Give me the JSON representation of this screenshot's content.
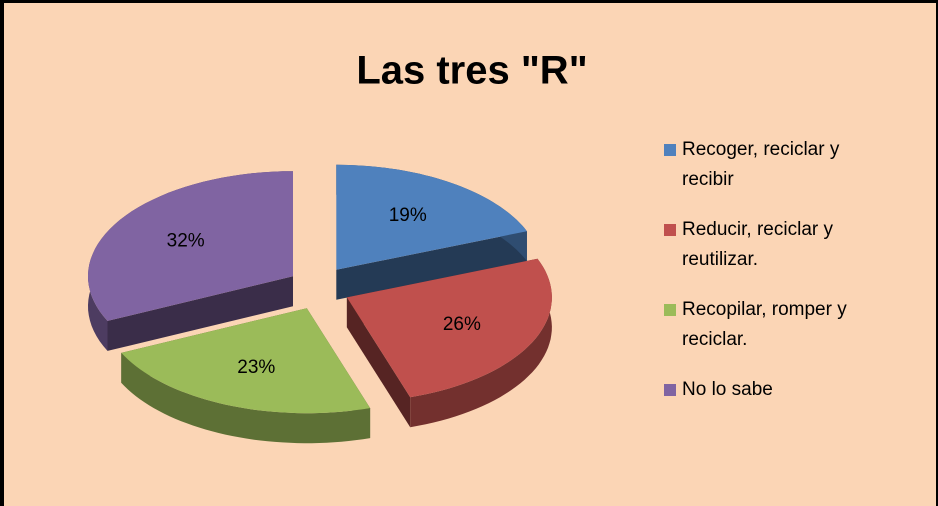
{
  "chart_data": {
    "type": "pie",
    "title": "Las tres \"R\"",
    "categories": [
      "Recoger, reciclar y recibir",
      "Reducir, reciclar y reutilizar.",
      "Recopilar, romper y reciclar.",
      "No lo sabe"
    ],
    "values": [
      19,
      26,
      23,
      32
    ],
    "value_labels": [
      "19%",
      "26%",
      "23%",
      "32%"
    ],
    "colors": [
      "#4f81bd",
      "#c0504d",
      "#9bbb59",
      "#8064a2"
    ],
    "legend": "right"
  }
}
